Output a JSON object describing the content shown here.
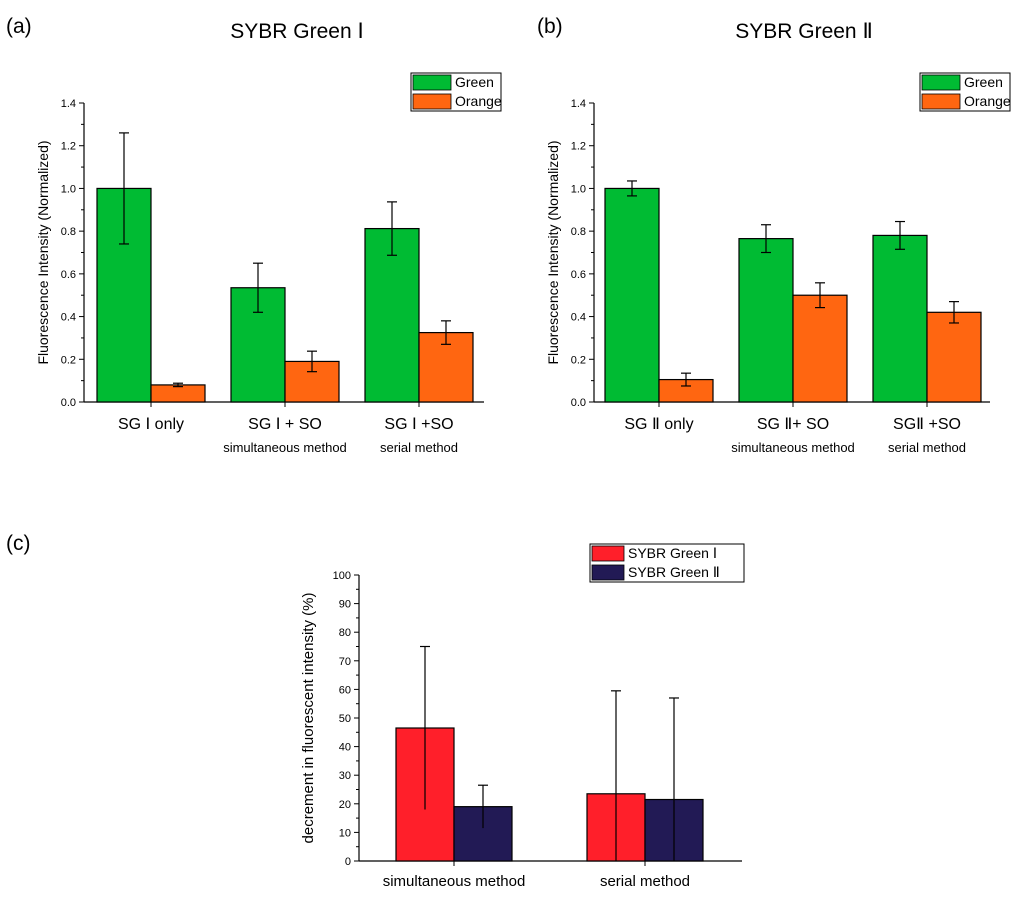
{
  "chart_data": [
    {
      "panel_label": "(a)",
      "type": "bar",
      "title": "SYBR Green Ⅰ",
      "ylabel": "Fluorescence Intensity (Normalized)",
      "ylim": [
        0,
        1.4
      ],
      "yticks": [
        "0.0",
        "0.2",
        "0.4",
        "0.6",
        "0.8",
        "1.0",
        "1.2",
        "1.4"
      ],
      "categories": [
        "SG Ⅰ only",
        "SG Ⅰ + SO",
        "SG Ⅰ +SO"
      ],
      "category_notes": [
        "",
        "simultaneous method",
        "serial method"
      ],
      "series": [
        {
          "name": "Green",
          "color": "#00bb33",
          "values": [
            1.0,
            0.535,
            0.812
          ],
          "errors": [
            0.26,
            0.115,
            0.125
          ]
        },
        {
          "name": "Orange",
          "color": "#ff6611",
          "values": [
            0.08,
            0.19,
            0.325
          ],
          "errors": [
            0.008,
            0.048,
            0.055
          ]
        }
      ],
      "legend": "top-right"
    },
    {
      "panel_label": "(b)",
      "type": "bar",
      "title": "SYBR Green Ⅱ",
      "ylabel": "Fluorescence Intensity (Normalized)",
      "ylim": [
        0,
        1.4
      ],
      "yticks": [
        "0.0",
        "0.2",
        "0.4",
        "0.6",
        "0.8",
        "1.0",
        "1.2",
        "1.4"
      ],
      "categories": [
        "SG Ⅱ only",
        "SG Ⅱ+ SO",
        "SGⅡ +SO"
      ],
      "category_notes": [
        "",
        "simultaneous method",
        "serial method"
      ],
      "series": [
        {
          "name": "Green",
          "color": "#00bb33",
          "values": [
            1.0,
            0.765,
            0.78
          ],
          "errors": [
            0.035,
            0.065,
            0.065
          ]
        },
        {
          "name": "Orange",
          "color": "#ff6611",
          "values": [
            0.105,
            0.5,
            0.42
          ],
          "errors": [
            0.03,
            0.058,
            0.05
          ]
        }
      ],
      "legend": "top-right"
    },
    {
      "panel_label": "(c)",
      "type": "bar",
      "title": "",
      "ylabel": "decrement in fluorescent intensity (%)",
      "ylim": [
        0,
        100
      ],
      "yticks": [
        "0",
        "10",
        "20",
        "30",
        "40",
        "50",
        "60",
        "70",
        "80",
        "90",
        "100"
      ],
      "categories": [
        "simultaneous method",
        "serial method"
      ],
      "category_notes": [
        "",
        ""
      ],
      "series": [
        {
          "name": "SYBR Green Ⅰ",
          "color": "#ff1f2a",
          "values": [
            46.5,
            23.5
          ],
          "errors": [
            28.5,
            36.0
          ]
        },
        {
          "name": "SYBR Green Ⅱ",
          "color": "#221a55",
          "values": [
            19,
            21.5
          ],
          "errors": [
            7.5,
            35.5
          ]
        }
      ],
      "legend": "top-right"
    }
  ]
}
